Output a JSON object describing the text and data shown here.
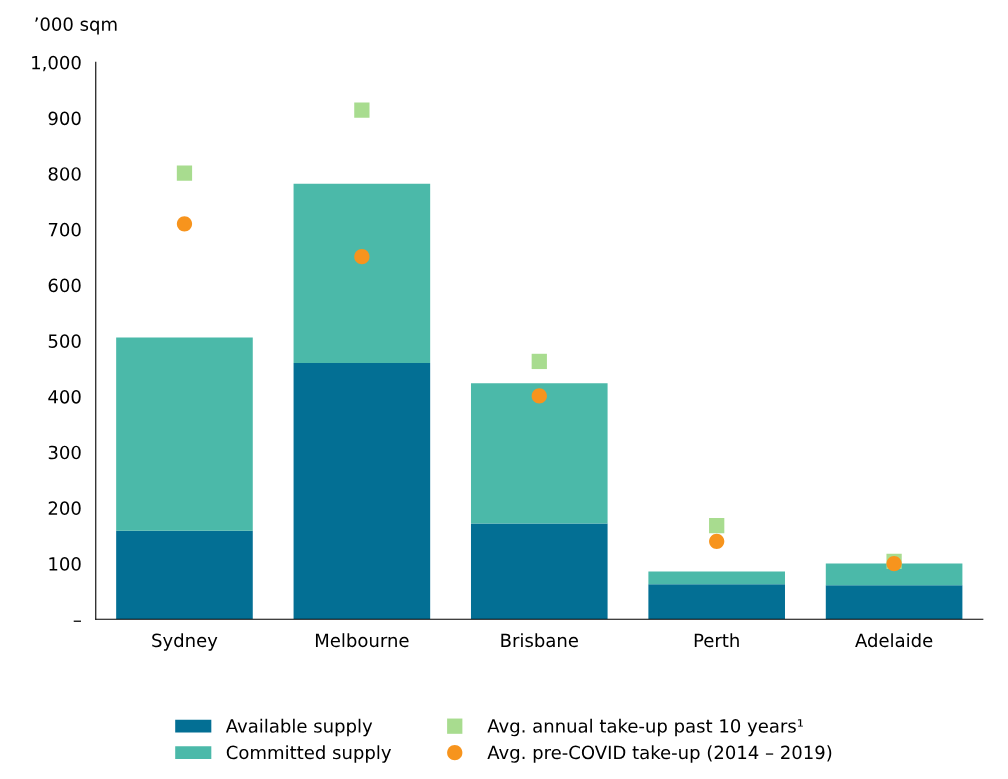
{
  "chart_data": {
    "type": "bar",
    "stacked": true,
    "ylabel": "’000 sqm",
    "categories": [
      "Sydney",
      "Melbourne",
      "Brisbane",
      "Perth",
      "Adelaide"
    ],
    "series": [
      {
        "name": "Available supply",
        "color": "#036f94",
        "values": [
          159,
          460,
          172,
          63,
          61
        ]
      },
      {
        "name": "Committed supply",
        "color": "#4bb9a9",
        "values": [
          347,
          322,
          252,
          23,
          39
        ]
      },
      {
        "name": "Avg. annual take-up past 10 years¹",
        "type": "scatter",
        "marker": "square",
        "color": "#a8dc8f",
        "x": [
          "Sydney",
          "Melbourne",
          "Brisbane",
          "Perth",
          "Adelaide"
        ],
        "values": [
          801,
          914,
          463,
          168,
          104
        ]
      },
      {
        "name": "Avg. pre-COVID take-up (2014 – 2019)",
        "type": "scatter",
        "marker": "circle",
        "color": "#f7941d",
        "x": [
          "Sydney",
          "Melbourne",
          "Brisbane",
          "Perth",
          "Adelaide"
        ],
        "values": [
          710,
          651,
          401,
          140,
          100
        ]
      }
    ],
    "ylim": [
      0,
      1000
    ],
    "yticks": [
      {
        "value": 0,
        "label": "–"
      },
      100,
      200,
      300,
      400,
      500,
      600,
      700,
      800,
      900,
      {
        "value": 1000,
        "label": "1,000"
      }
    ],
    "grid": false,
    "legend": "bottom"
  }
}
